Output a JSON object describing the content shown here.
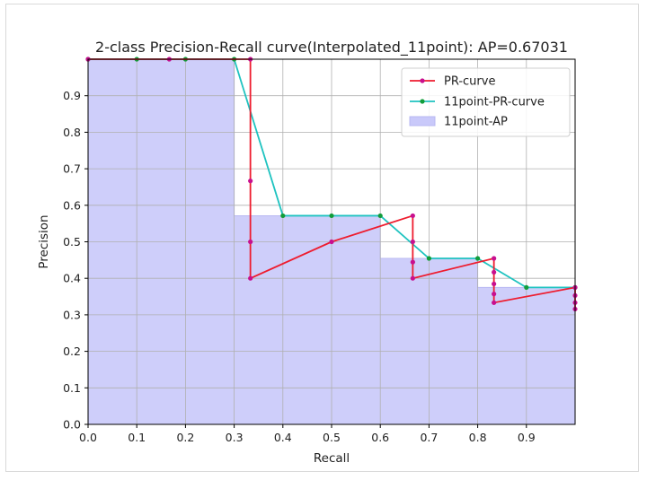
{
  "chart_data": {
    "type": "line",
    "title": "2-class Precision-Recall curve(Interpolated_11point): AP=0.67031",
    "xlabel": "Recall",
    "ylabel": "Precision",
    "xlim": [
      0.0,
      1.0
    ],
    "ylim": [
      0.0,
      1.0
    ],
    "x_ticks": [
      "0.0",
      "0.1",
      "0.2",
      "0.3",
      "0.4",
      "0.5",
      "0.6",
      "0.7",
      "0.8",
      "0.9"
    ],
    "y_ticks": [
      "0.0",
      "0.1",
      "0.2",
      "0.3",
      "0.4",
      "0.5",
      "0.6",
      "0.7",
      "0.8",
      "0.9"
    ],
    "grid": true,
    "legend_position": "top-right",
    "legend": [
      "PR-curve",
      "11point-PR-curve",
      "11point-AP"
    ],
    "colors": {
      "pr_line": "#ee1c2e",
      "pr_marker": "#c80f8f",
      "interp_line": "#1fc3c0",
      "interp_marker": "#129c3a",
      "ap_fill": "#c9c9fa",
      "ap_edge": "#b8b8f2",
      "grid": "#b0b0b0"
    },
    "series": [
      {
        "name": "PR-curve",
        "x": [
          0.0,
          0.1667,
          0.3333,
          0.3333,
          0.3333,
          0.3333,
          0.5,
          0.6667,
          0.6667,
          0.6667,
          0.6667,
          0.8333,
          0.8333,
          0.8333,
          0.8333,
          0.8333,
          1.0,
          1.0,
          1.0,
          1.0
        ],
        "y": [
          1.0,
          1.0,
          1.0,
          0.6667,
          0.5,
          0.4,
          0.5,
          0.5714,
          0.5,
          0.4444,
          0.4,
          0.4545,
          0.4167,
          0.3846,
          0.3571,
          0.3333,
          0.375,
          0.3529,
          0.3333,
          0.3158
        ]
      },
      {
        "name": "11point-PR-curve",
        "x": [
          0.0,
          0.1,
          0.2,
          0.3,
          0.4,
          0.5,
          0.6,
          0.7,
          0.8,
          0.9,
          1.0
        ],
        "y": [
          1.0,
          1.0,
          1.0,
          1.0,
          0.5714,
          0.5714,
          0.5714,
          0.4545,
          0.4545,
          0.375,
          0.375
        ]
      },
      {
        "name": "11point-AP",
        "type": "step-area",
        "x": [
          0.0,
          0.1,
          0.2,
          0.3,
          0.4,
          0.5,
          0.6,
          0.7,
          0.8,
          0.9,
          1.0
        ],
        "y": [
          1.0,
          1.0,
          1.0,
          0.5714,
          0.5714,
          0.5714,
          0.4545,
          0.4545,
          0.375,
          0.375,
          0.375
        ]
      }
    ]
  }
}
